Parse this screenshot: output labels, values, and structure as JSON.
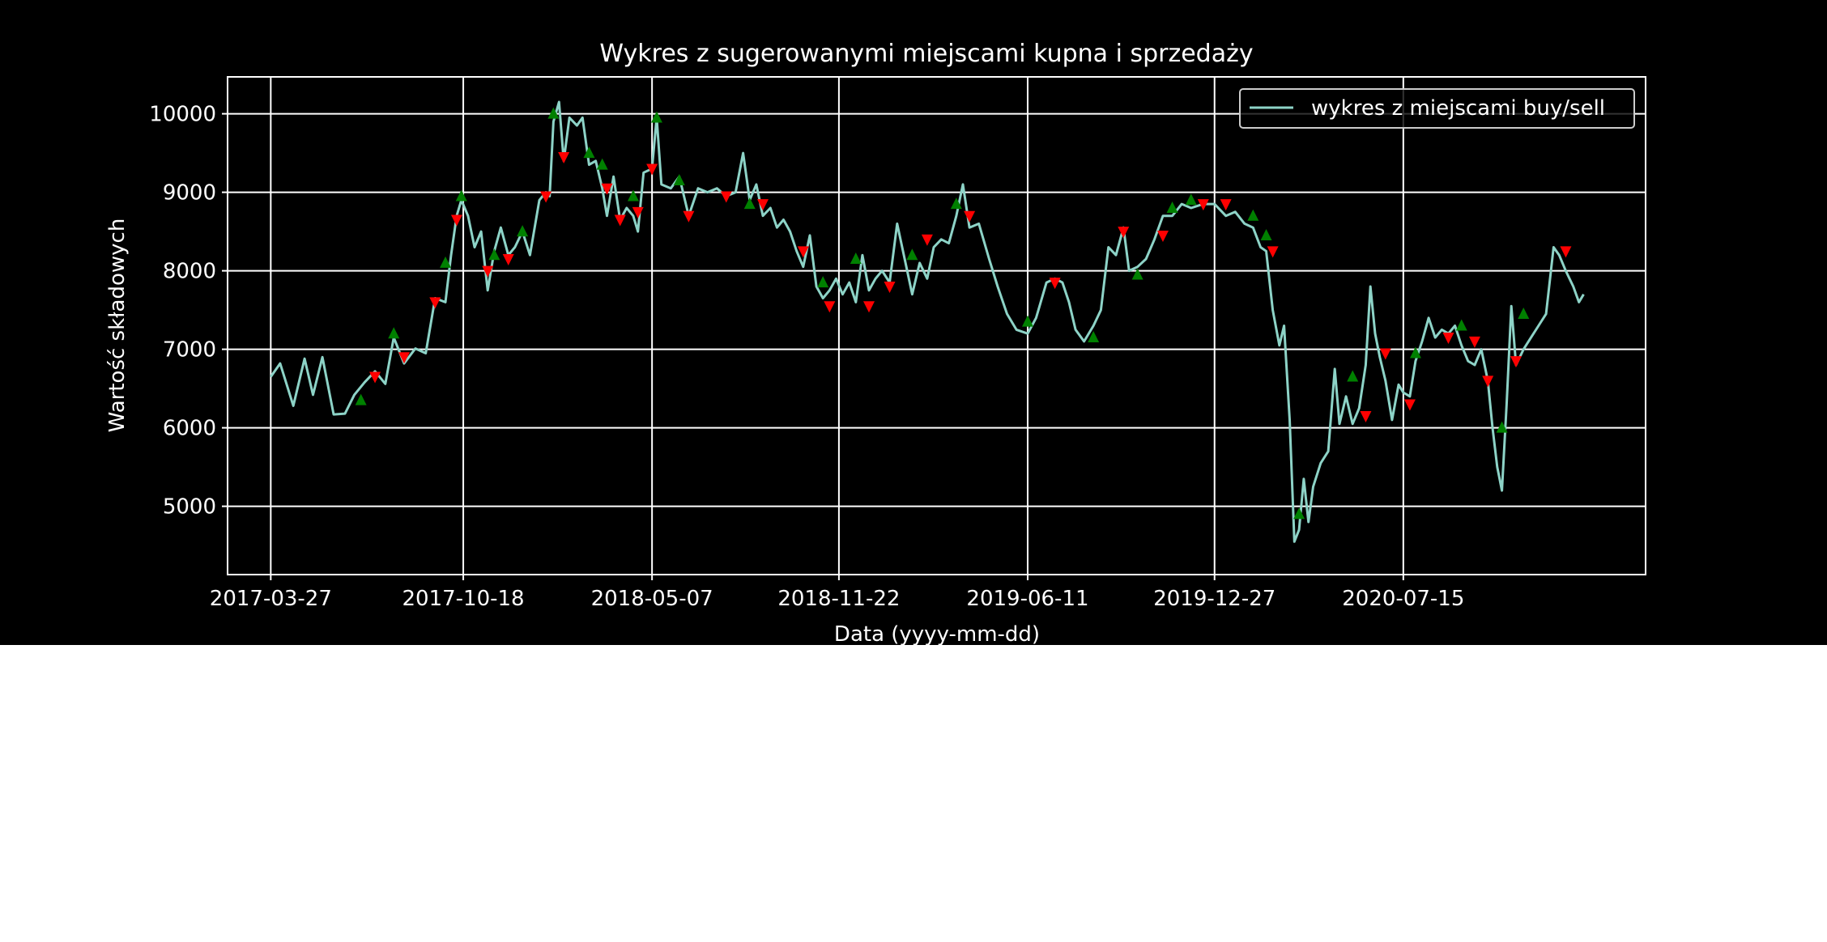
{
  "chart_data": {
    "type": "line",
    "title": "Wykres z sugerowanymi miejscami kupna i sprzedaży",
    "xlabel": "Data (yyyy-mm-dd)",
    "ylabel": "Wartość składowych",
    "x_tick_labels": [
      "2017-03-27",
      "2017-10-18",
      "2018-05-07",
      "2018-11-22",
      "2019-06-11",
      "2019-12-27",
      "2020-07-15"
    ],
    "y_ticks": [
      5000,
      6000,
      7000,
      8000,
      9000,
      10000
    ],
    "xlim": [
      "2017-02-09",
      "2021-03-30"
    ],
    "ylim": [
      4130,
      10470
    ],
    "grid": true,
    "legend_position": "top-right",
    "series": [
      {
        "name": "wykres z miejscami buy/sell",
        "color": "#8dd3c7",
        "points": [
          [
            "2017-03-27",
            6650
          ],
          [
            "2017-04-06",
            6820
          ],
          [
            "2017-04-20",
            6280
          ],
          [
            "2017-05-02",
            6880
          ],
          [
            "2017-05-11",
            6420
          ],
          [
            "2017-05-21",
            6900
          ],
          [
            "2017-06-02",
            6170
          ],
          [
            "2017-06-14",
            6180
          ],
          [
            "2017-06-24",
            6420
          ],
          [
            "2017-07-05",
            6580
          ],
          [
            "2017-07-16",
            6720
          ],
          [
            "2017-07-27",
            6560
          ],
          [
            "2017-08-05",
            7150
          ],
          [
            "2017-08-16",
            6820
          ],
          [
            "2017-08-28",
            7010
          ],
          [
            "2017-09-08",
            6950
          ],
          [
            "2017-09-18",
            7650
          ],
          [
            "2017-09-29",
            7600
          ],
          [
            "2017-10-05",
            8200
          ],
          [
            "2017-10-11",
            8700
          ],
          [
            "2017-10-16",
            8900
          ],
          [
            "2017-10-23",
            8700
          ],
          [
            "2017-10-30",
            8300
          ],
          [
            "2017-11-06",
            8500
          ],
          [
            "2017-11-13",
            7750
          ],
          [
            "2017-11-20",
            8250
          ],
          [
            "2017-11-27",
            8550
          ],
          [
            "2017-12-05",
            8200
          ],
          [
            "2017-12-12",
            8300
          ],
          [
            "2017-12-20",
            8500
          ],
          [
            "2017-12-28",
            8200
          ],
          [
            "2018-01-07",
            8900
          ],
          [
            "2018-01-14",
            9000
          ],
          [
            "2018-01-18",
            8950
          ],
          [
            "2018-01-22",
            9900
          ],
          [
            "2018-01-28",
            10150
          ],
          [
            "2018-02-02",
            9400
          ],
          [
            "2018-02-08",
            9950
          ],
          [
            "2018-02-16",
            9850
          ],
          [
            "2018-02-22",
            9950
          ],
          [
            "2018-03-01",
            9350
          ],
          [
            "2018-03-08",
            9400
          ],
          [
            "2018-03-15",
            9050
          ],
          [
            "2018-03-20",
            8700
          ],
          [
            "2018-03-27",
            9200
          ],
          [
            "2018-04-03",
            8650
          ],
          [
            "2018-04-10",
            8800
          ],
          [
            "2018-04-17",
            8700
          ],
          [
            "2018-04-22",
            8500
          ],
          [
            "2018-04-28",
            9250
          ],
          [
            "2018-05-07",
            9300
          ],
          [
            "2018-05-12",
            9950
          ],
          [
            "2018-05-17",
            9100
          ],
          [
            "2018-05-27",
            9050
          ],
          [
            "2018-06-05",
            9200
          ],
          [
            "2018-06-15",
            8700
          ],
          [
            "2018-06-25",
            9050
          ],
          [
            "2018-07-05",
            9000
          ],
          [
            "2018-07-15",
            9050
          ],
          [
            "2018-07-25",
            8950
          ],
          [
            "2018-08-04",
            9000
          ],
          [
            "2018-08-12",
            9500
          ],
          [
            "2018-08-19",
            8900
          ],
          [
            "2018-08-26",
            9100
          ],
          [
            "2018-09-02",
            8700
          ],
          [
            "2018-09-10",
            8800
          ],
          [
            "2018-09-17",
            8550
          ],
          [
            "2018-09-24",
            8650
          ],
          [
            "2018-10-01",
            8500
          ],
          [
            "2018-10-08",
            8250
          ],
          [
            "2018-10-15",
            8050
          ],
          [
            "2018-10-22",
            8450
          ],
          [
            "2018-10-29",
            7800
          ],
          [
            "2018-11-05",
            7650
          ],
          [
            "2018-11-12",
            7750
          ],
          [
            "2018-11-19",
            7900
          ],
          [
            "2018-11-26",
            7700
          ],
          [
            "2018-12-03",
            7850
          ],
          [
            "2018-12-10",
            7600
          ],
          [
            "2018-12-17",
            8200
          ],
          [
            "2018-12-24",
            7750
          ],
          [
            "2018-12-31",
            7900
          ],
          [
            "2019-01-07",
            8000
          ],
          [
            "2019-01-15",
            7850
          ],
          [
            "2019-01-23",
            8600
          ],
          [
            "2019-01-31",
            8150
          ],
          [
            "2019-02-08",
            7700
          ],
          [
            "2019-02-16",
            8100
          ],
          [
            "2019-02-24",
            7900
          ],
          [
            "2019-03-03",
            8300
          ],
          [
            "2019-03-11",
            8400
          ],
          [
            "2019-03-19",
            8350
          ],
          [
            "2019-03-27",
            8700
          ],
          [
            "2019-04-03",
            9100
          ],
          [
            "2019-04-10",
            8550
          ],
          [
            "2019-04-20",
            8600
          ],
          [
            "2019-05-01",
            8150
          ],
          [
            "2019-05-10",
            7800
          ],
          [
            "2019-05-20",
            7450
          ],
          [
            "2019-05-30",
            7250
          ],
          [
            "2019-06-11",
            7200
          ],
          [
            "2019-06-20",
            7400
          ],
          [
            "2019-07-01",
            7850
          ],
          [
            "2019-07-10",
            7900
          ],
          [
            "2019-07-18",
            7850
          ],
          [
            "2019-07-25",
            7600
          ],
          [
            "2019-08-01",
            7250
          ],
          [
            "2019-08-10",
            7100
          ],
          [
            "2019-08-20",
            7300
          ],
          [
            "2019-08-28",
            7500
          ],
          [
            "2019-09-05",
            8300
          ],
          [
            "2019-09-13",
            8200
          ],
          [
            "2019-09-21",
            8550
          ],
          [
            "2019-09-27",
            8000
          ],
          [
            "2019-10-06",
            8050
          ],
          [
            "2019-10-15",
            8150
          ],
          [
            "2019-10-24",
            8400
          ],
          [
            "2019-11-02",
            8700
          ],
          [
            "2019-11-12",
            8700
          ],
          [
            "2019-11-22",
            8850
          ],
          [
            "2019-12-02",
            8800
          ],
          [
            "2019-12-15",
            8850
          ],
          [
            "2019-12-27",
            8850
          ],
          [
            "2020-01-08",
            8700
          ],
          [
            "2020-01-18",
            8750
          ],
          [
            "2020-01-28",
            8600
          ],
          [
            "2020-02-06",
            8550
          ],
          [
            "2020-02-14",
            8300
          ],
          [
            "2020-02-20",
            8250
          ],
          [
            "2020-02-27",
            7500
          ],
          [
            "2020-03-05",
            7050
          ],
          [
            "2020-03-10",
            7300
          ],
          [
            "2020-03-16",
            6100
          ],
          [
            "2020-03-21",
            4550
          ],
          [
            "2020-03-26",
            4700
          ],
          [
            "2020-03-31",
            5350
          ],
          [
            "2020-04-05",
            4800
          ],
          [
            "2020-04-10",
            5250
          ],
          [
            "2020-04-18",
            5550
          ],
          [
            "2020-04-26",
            5700
          ],
          [
            "2020-05-03",
            6750
          ],
          [
            "2020-05-08",
            6050
          ],
          [
            "2020-05-15",
            6400
          ],
          [
            "2020-05-22",
            6050
          ],
          [
            "2020-05-29",
            6250
          ],
          [
            "2020-06-05",
            6800
          ],
          [
            "2020-06-10",
            7800
          ],
          [
            "2020-06-15",
            7200
          ],
          [
            "2020-06-20",
            6900
          ],
          [
            "2020-06-26",
            6600
          ],
          [
            "2020-07-03",
            6100
          ],
          [
            "2020-07-10",
            6550
          ],
          [
            "2020-07-15",
            6450
          ],
          [
            "2020-07-22",
            6400
          ],
          [
            "2020-07-28",
            6850
          ],
          [
            "2020-08-04",
            7100
          ],
          [
            "2020-08-11",
            7400
          ],
          [
            "2020-08-18",
            7150
          ],
          [
            "2020-08-25",
            7250
          ],
          [
            "2020-09-01",
            7200
          ],
          [
            "2020-09-08",
            7300
          ],
          [
            "2020-09-15",
            7050
          ],
          [
            "2020-09-22",
            6850
          ],
          [
            "2020-09-29",
            6800
          ],
          [
            "2020-10-06",
            7000
          ],
          [
            "2020-10-13",
            6600
          ],
          [
            "2020-10-18",
            6000
          ],
          [
            "2020-10-23",
            5500
          ],
          [
            "2020-10-28",
            5200
          ],
          [
            "2020-11-02",
            6300
          ],
          [
            "2020-11-07",
            7550
          ],
          [
            "2020-11-12",
            6800
          ],
          [
            "2020-11-20",
            7000
          ],
          [
            "2020-11-28",
            7150
          ],
          [
            "2020-12-06",
            7300
          ],
          [
            "2020-12-14",
            7450
          ],
          [
            "2020-12-22",
            8300
          ],
          [
            "2020-12-28",
            8200
          ],
          [
            "2021-01-04",
            8000
          ],
          [
            "2021-01-12",
            7800
          ],
          [
            "2021-01-18",
            7600
          ],
          [
            "2021-01-23",
            7700
          ]
        ]
      }
    ],
    "buy_markers": {
      "color": "#008000",
      "shape": "triangle-up",
      "points": [
        [
          "2017-07-01",
          6350
        ],
        [
          "2017-08-05",
          7200
        ],
        [
          "2017-09-29",
          8100
        ],
        [
          "2017-10-16",
          8950
        ],
        [
          "2017-11-20",
          8200
        ],
        [
          "2017-12-20",
          8500
        ],
        [
          "2018-01-22",
          10000
        ],
        [
          "2018-03-01",
          9500
        ],
        [
          "2018-03-15",
          9350
        ],
        [
          "2018-04-17",
          8950
        ],
        [
          "2018-05-12",
          9950
        ],
        [
          "2018-06-05",
          9150
        ],
        [
          "2018-08-19",
          8850
        ],
        [
          "2018-11-05",
          7850
        ],
        [
          "2018-12-10",
          8150
        ],
        [
          "2019-02-08",
          8200
        ],
        [
          "2019-03-27",
          8850
        ],
        [
          "2019-06-11",
          7350
        ],
        [
          "2019-08-20",
          7150
        ],
        [
          "2019-10-06",
          7950
        ],
        [
          "2019-11-12",
          8800
        ],
        [
          "2019-12-02",
          8900
        ],
        [
          "2020-02-06",
          8700
        ],
        [
          "2020-02-20",
          8450
        ],
        [
          "2020-03-26",
          4900
        ],
        [
          "2020-05-22",
          6650
        ],
        [
          "2020-07-28",
          6950
        ],
        [
          "2020-09-15",
          7300
        ],
        [
          "2020-10-28",
          6000
        ],
        [
          "2020-11-20",
          7450
        ]
      ]
    },
    "sell_markers": {
      "color": "#ff0000",
      "shape": "triangle-down",
      "points": [
        [
          "2017-07-16",
          6650
        ],
        [
          "2017-08-16",
          6900
        ],
        [
          "2017-09-18",
          7600
        ],
        [
          "2017-10-11",
          8650
        ],
        [
          "2017-11-13",
          8000
        ],
        [
          "2017-12-05",
          8150
        ],
        [
          "2018-01-14",
          8950
        ],
        [
          "2018-02-02",
          9450
        ],
        [
          "2018-03-20",
          9050
        ],
        [
          "2018-04-03",
          8650
        ],
        [
          "2018-04-22",
          8750
        ],
        [
          "2018-05-07",
          9300
        ],
        [
          "2018-06-15",
          8700
        ],
        [
          "2018-07-25",
          8950
        ],
        [
          "2018-09-02",
          8850
        ],
        [
          "2018-10-15",
          8250
        ],
        [
          "2018-11-12",
          7550
        ],
        [
          "2018-12-24",
          7550
        ],
        [
          "2019-01-15",
          7800
        ],
        [
          "2019-02-24",
          8400
        ],
        [
          "2019-04-10",
          8700
        ],
        [
          "2019-07-10",
          7850
        ],
        [
          "2019-09-21",
          8500
        ],
        [
          "2019-11-02",
          8450
        ],
        [
          "2019-12-15",
          8850
        ],
        [
          "2020-01-08",
          8850
        ],
        [
          "2020-02-27",
          8250
        ],
        [
          "2020-06-05",
          6150
        ],
        [
          "2020-06-26",
          6950
        ],
        [
          "2020-07-22",
          6300
        ],
        [
          "2020-09-01",
          7150
        ],
        [
          "2020-09-29",
          7100
        ],
        [
          "2020-10-13",
          6600
        ],
        [
          "2020-11-12",
          6850
        ],
        [
          "2021-01-04",
          8250
        ]
      ]
    }
  }
}
